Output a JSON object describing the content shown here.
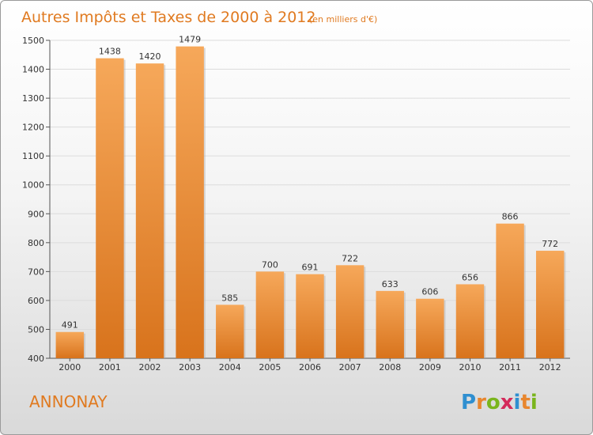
{
  "chart_data": {
    "type": "bar",
    "title": "Autres Impôts et Taxes de 2000 à 2012",
    "subtitle": "(en milliers d'€)",
    "categories": [
      "2000",
      "2001",
      "2002",
      "2003",
      "2004",
      "2005",
      "2006",
      "2007",
      "2008",
      "2009",
      "2010",
      "2011",
      "2012"
    ],
    "values": [
      491,
      1438,
      1420,
      1479,
      585,
      700,
      691,
      722,
      633,
      606,
      656,
      866,
      772
    ],
    "ylim": [
      400,
      1500
    ],
    "yticks": [
      400,
      500,
      600,
      700,
      800,
      900,
      1000,
      1100,
      1200,
      1300,
      1400,
      1500
    ],
    "grid": true,
    "bar_color": "#e8862e",
    "legend": "none"
  },
  "footer": {
    "city": "ANNONAY",
    "logo": "Proxiti"
  }
}
